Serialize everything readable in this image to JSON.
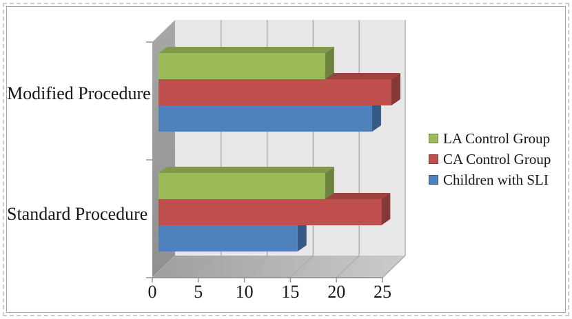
{
  "window": {
    "background": "#ffffff",
    "frame_border_color": "#a6a6a6",
    "selection_dash_color": "#cdcdcd"
  },
  "chart_data": {
    "type": "bar",
    "orientation": "horizontal",
    "style": "3d-clustered",
    "title": "",
    "categories": [
      "Modified Procedure",
      "Standard Procedure"
    ],
    "series": [
      {
        "name": "LA Control Group",
        "color": "#9BBB59",
        "values": [
          18.1,
          18.1
        ]
      },
      {
        "name": "CA Control Group",
        "color": "#C0504D",
        "values": [
          25.3,
          24.2
        ]
      },
      {
        "name": "Children with SLI",
        "color": "#4F81BD",
        "values": [
          23.2,
          15.1
        ]
      }
    ],
    "x_axis": {
      "min": 0,
      "max": 25,
      "ticks": [
        0,
        5,
        10,
        15,
        20,
        25
      ],
      "tick_labels": [
        "0",
        "5",
        "10",
        "15",
        "20",
        "25"
      ],
      "gridlines": true
    },
    "legend": {
      "position": "right"
    },
    "colors": {
      "back_wall": "#E7E7E7",
      "side_wall": "#9A9A9A",
      "floor_light": "#C9C9C9",
      "floor_dark": "#A2A2A2",
      "gridline": "#ABABAB",
      "axis_line": "#8C8C8C",
      "text": "#151515"
    }
  }
}
